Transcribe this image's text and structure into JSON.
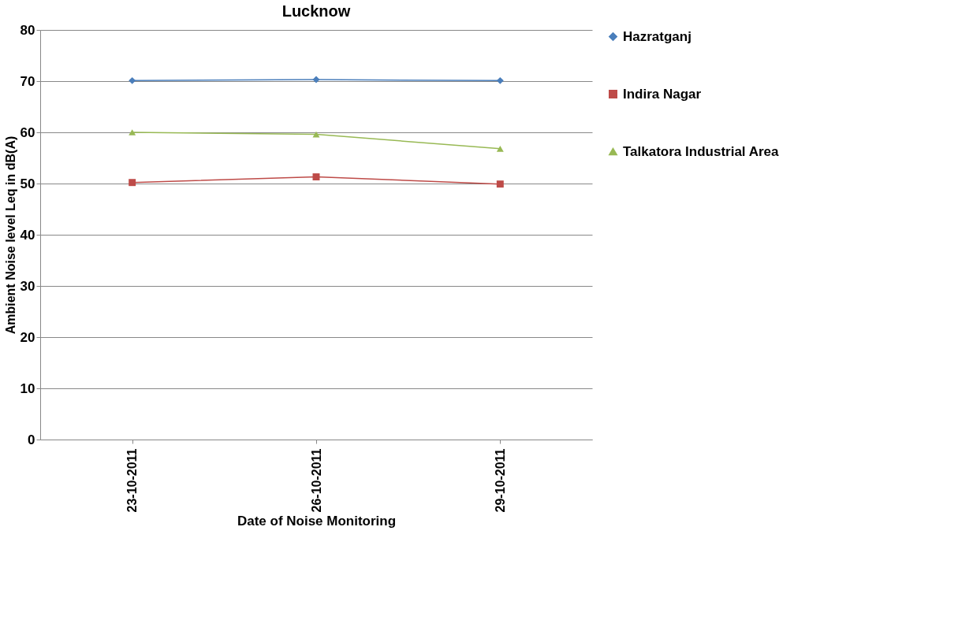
{
  "chart_data": {
    "type": "line",
    "title": "Lucknow",
    "xlabel": "Date of Noise Monitoring",
    "ylabel": "Ambient Noise level Leq in dB(A)",
    "categories": [
      "23-10-2011",
      "26-10-2011",
      "29-10-2011"
    ],
    "series": [
      {
        "name": "Hazratganj",
        "color": "#4a7ebb",
        "marker": "diamond",
        "values": [
          70.1,
          70.3,
          70.1
        ]
      },
      {
        "name": "Indira Nagar",
        "color": "#be4b48",
        "marker": "square",
        "values": [
          50.2,
          51.3,
          49.9
        ]
      },
      {
        "name": "Talkatora Industrial Area",
        "color": "#98b954",
        "marker": "triangle",
        "values": [
          60.0,
          59.6,
          56.8
        ]
      }
    ],
    "ylim": [
      0,
      80
    ],
    "yticks": [
      0,
      10,
      20,
      30,
      40,
      50,
      60,
      70,
      80
    ],
    "grid": "y",
    "legend": "right"
  }
}
